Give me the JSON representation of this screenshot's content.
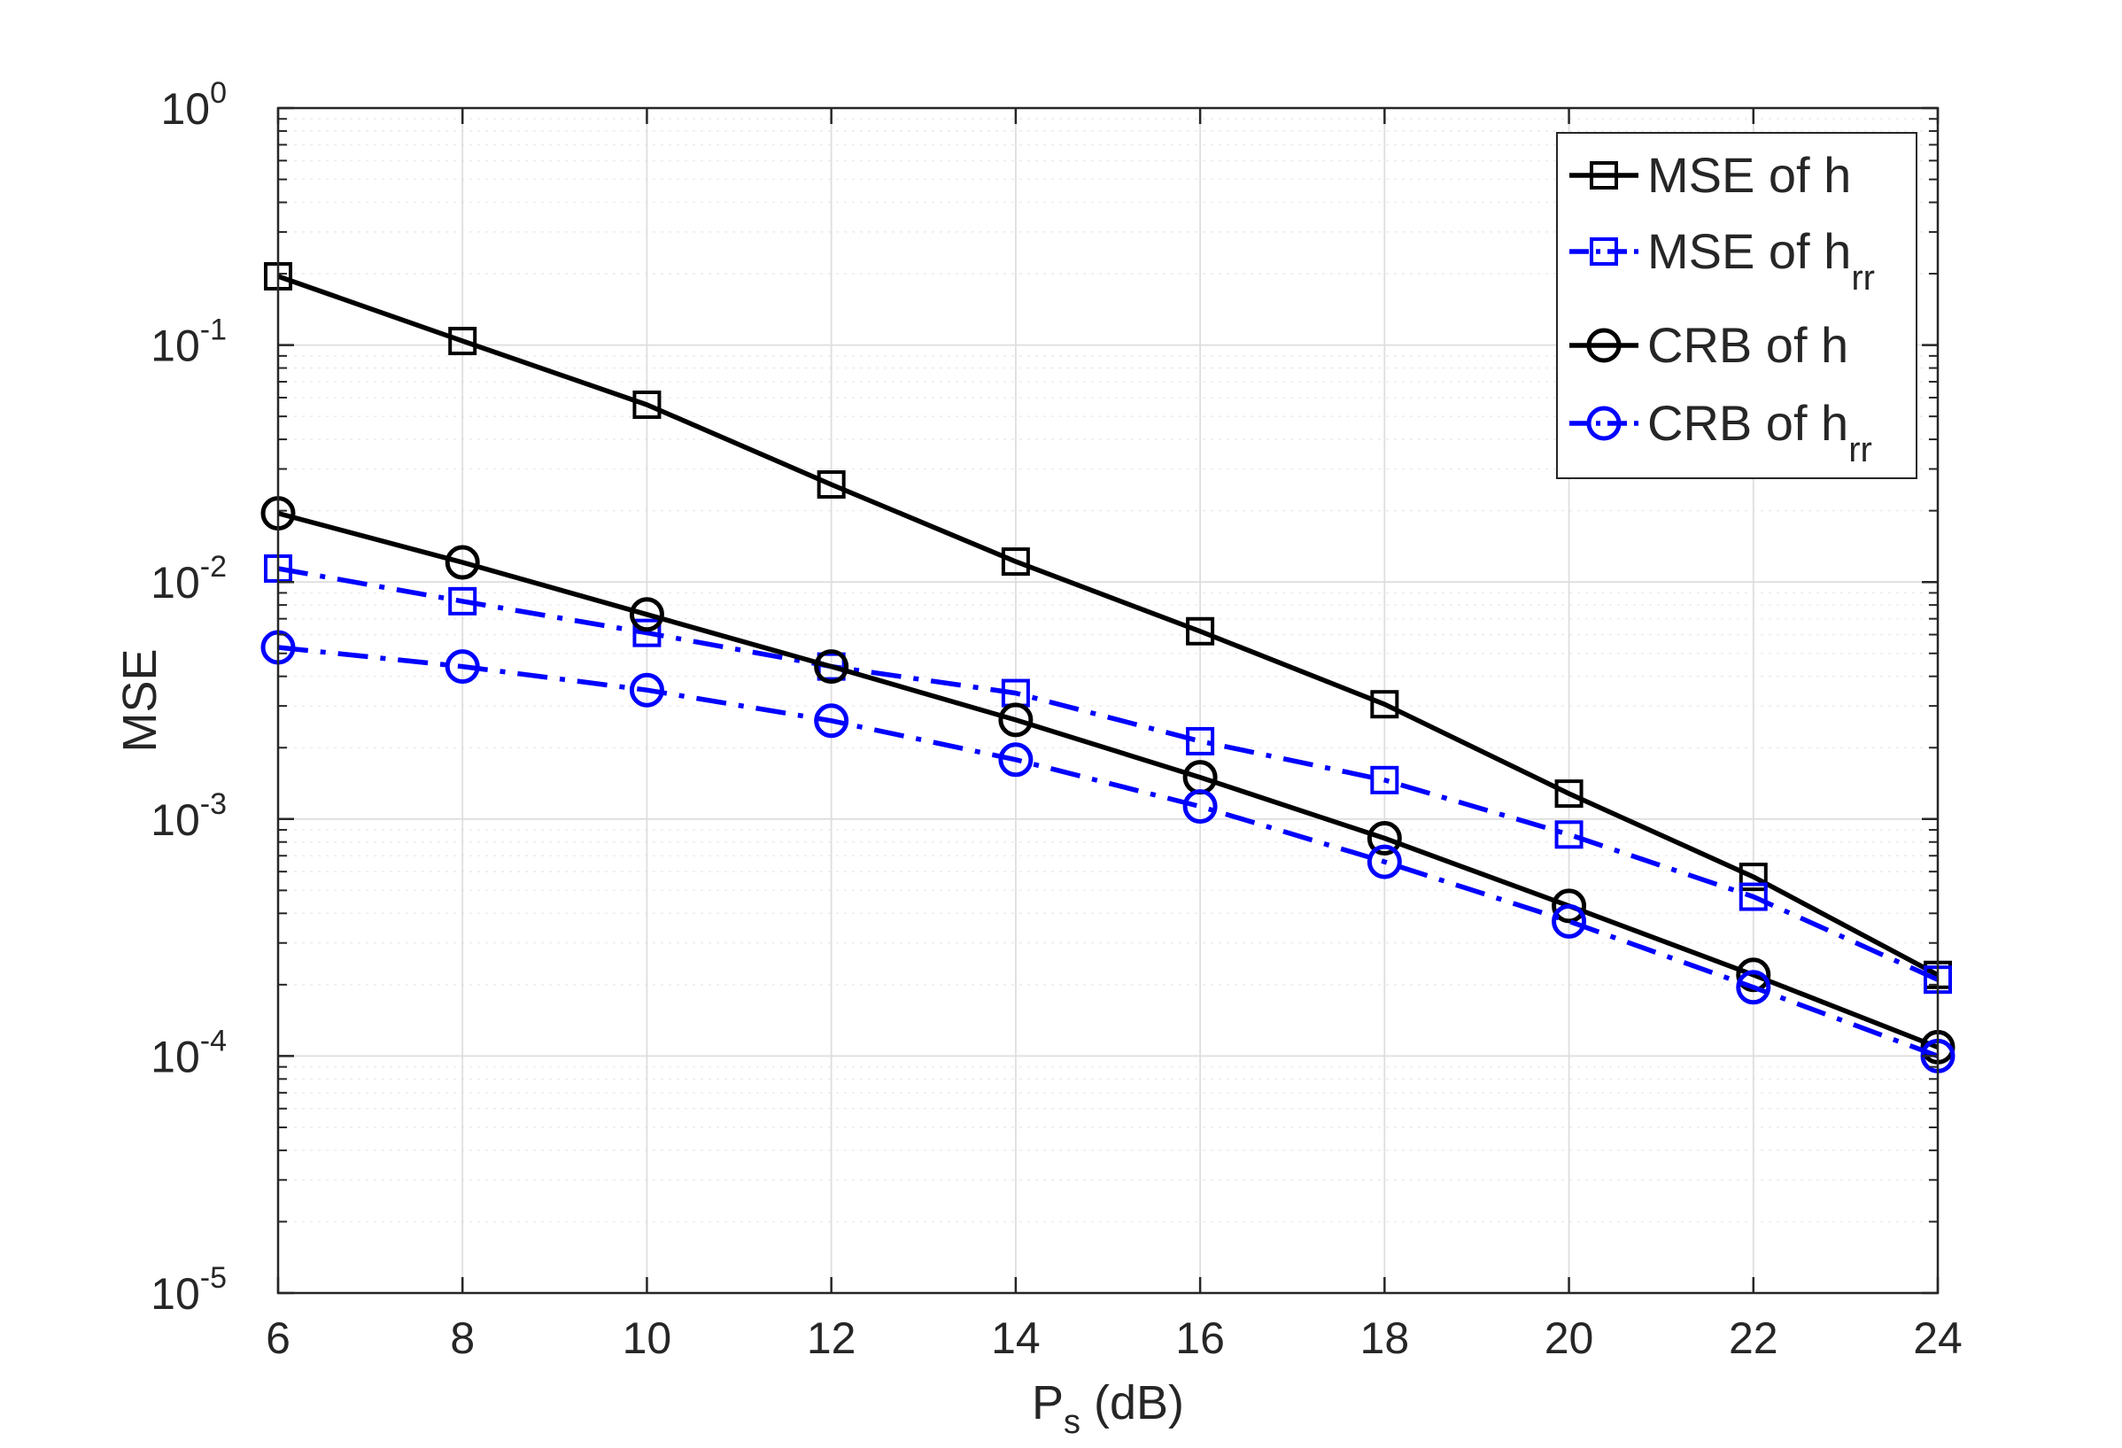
{
  "chart_data": {
    "type": "line",
    "title": "",
    "xlabel": {
      "main": "P",
      "sub": "s",
      "rest": " (dB)"
    },
    "ylabel": "MSE",
    "x": [
      6,
      8,
      10,
      12,
      14,
      16,
      18,
      20,
      22,
      24
    ],
    "xlim": [
      6,
      24
    ],
    "ylim": [
      1e-05,
      1
    ],
    "yscale": "log",
    "grid": true,
    "minor_grid": true,
    "legend_position": "top-right",
    "xticks": [
      6,
      8,
      10,
      12,
      14,
      16,
      18,
      20,
      22,
      24
    ],
    "xtick_labels": [
      "6",
      "8",
      "10",
      "12",
      "14",
      "16",
      "18",
      "20",
      "22",
      "24"
    ],
    "yticks": [
      {
        "value": 1,
        "base": "10",
        "exp": "0"
      },
      {
        "value": 0.1,
        "base": "10",
        "exp": "-1"
      },
      {
        "value": 0.01,
        "base": "10",
        "exp": "-2"
      },
      {
        "value": 0.001,
        "base": "10",
        "exp": "-3"
      },
      {
        "value": 0.0001,
        "base": "10",
        "exp": "-4"
      },
      {
        "value": 1e-05,
        "base": "10",
        "exp": "-5"
      }
    ],
    "series": [
      {
        "name": "MSE of h",
        "name_main": "MSE of h",
        "name_sub": "",
        "color": "#000000",
        "line_style": "solid",
        "marker": "square",
        "values": [
          0.195,
          0.104,
          0.056,
          0.0258,
          0.0122,
          0.0062,
          0.00305,
          0.00128,
          0.00057,
          0.00022
        ]
      },
      {
        "name": "MSE of hrr",
        "name_main": "MSE of h",
        "name_sub": "rr",
        "color": "#0000FF",
        "line_style": "dashdot",
        "marker": "square",
        "values": [
          0.0114,
          0.0083,
          0.0061,
          0.0044,
          0.0034,
          0.00213,
          0.00146,
          0.00086,
          0.00047,
          0.00021
        ]
      },
      {
        "name": "CRB of h",
        "name_main": "CRB of h",
        "name_sub": "",
        "color": "#000000",
        "line_style": "solid",
        "marker": "circle",
        "values": [
          0.0195,
          0.0121,
          0.0073,
          0.0044,
          0.00262,
          0.0015,
          0.00083,
          0.00043,
          0.00022,
          0.000109
        ]
      },
      {
        "name": "CRB of hrr",
        "name_main": "CRB of h",
        "name_sub": "rr",
        "color": "#0000FF",
        "line_style": "dashdot",
        "marker": "circle",
        "values": [
          0.0053,
          0.0044,
          0.0035,
          0.0026,
          0.00178,
          0.00113,
          0.00066,
          0.00037,
          0.000195,
          0.0001
        ]
      }
    ]
  }
}
